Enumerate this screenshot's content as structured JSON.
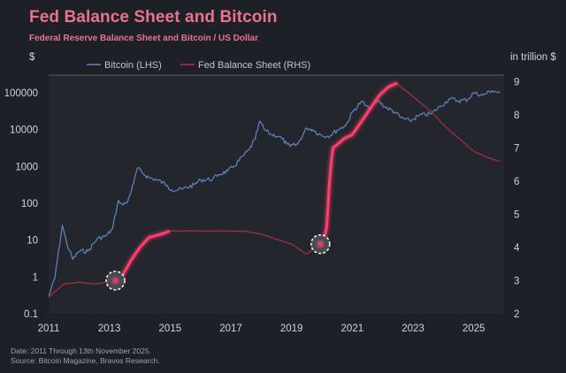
{
  "title": "Fed Balance Sheet and Bitcoin",
  "subtitle": "Federal Reserve Balance Sheet and Bitcoin / US Dollar",
  "left_axis_unit": "$",
  "right_axis_unit": "in trillion $",
  "footer": {
    "date_line": "Date: 2011 Through 13th November 2025.",
    "source_line": "Source: Bitcoin Magazine, Bravos Research."
  },
  "colors": {
    "background": "#1e2027",
    "plot_background": "#24262d",
    "bitcoin": "#5b7fb5",
    "fed": "#a83046",
    "fed_highlight": "#ff3d6a",
    "title": "#e8728f"
  },
  "chart_data": {
    "type": "line",
    "title": "Fed Balance Sheet and Bitcoin",
    "legend": [
      "Bitcoin (LHS)",
      "Fed Balance Sheet (RHS)"
    ],
    "legend_position": "top-left",
    "grid": false,
    "x_axis": {
      "min": 2011,
      "max": 2026,
      "ticks": [
        2011,
        2013,
        2015,
        2017,
        2019,
        2021,
        2023,
        2025
      ],
      "tick_labels": [
        "2011",
        "2013",
        "2015",
        "2017",
        "2019",
        "2021",
        "2023",
        "2025"
      ]
    },
    "y_left": {
      "scale": "log",
      "min": 0.1,
      "max": 300000,
      "ticks": [
        0.1,
        1,
        10,
        100,
        1000,
        10000,
        100000
      ],
      "tick_labels": [
        "0.1",
        "1",
        "10",
        "100",
        "1000",
        "10000",
        "100000"
      ]
    },
    "y_right": {
      "scale": "linear",
      "min": 2,
      "max": 9.2,
      "ticks": [
        2,
        3,
        4,
        5,
        6,
        7,
        8,
        9
      ],
      "tick_labels": [
        "2",
        "3",
        "4",
        "5",
        "6",
        "7",
        "8",
        "9"
      ]
    },
    "series": [
      {
        "name": "Bitcoin (LHS)",
        "axis": "left",
        "x": [
          2011.0,
          2011.2,
          2011.45,
          2011.6,
          2011.8,
          2012.0,
          2012.3,
          2012.6,
          2012.9,
          2013.1,
          2013.3,
          2013.45,
          2013.6,
          2013.8,
          2013.92,
          2014.1,
          2014.3,
          2014.6,
          2014.9,
          2015.05,
          2015.4,
          2015.8,
          2016.0,
          2016.4,
          2016.6,
          2016.9,
          2017.1,
          2017.4,
          2017.6,
          2017.8,
          2017.96,
          2018.1,
          2018.3,
          2018.6,
          2018.85,
          2018.95,
          2019.2,
          2019.5,
          2019.7,
          2019.95,
          2020.2,
          2020.5,
          2020.8,
          2021.0,
          2021.3,
          2021.55,
          2021.85,
          2022.1,
          2022.4,
          2022.6,
          2022.9,
          2023.2,
          2023.6,
          2023.9,
          2024.2,
          2024.5,
          2024.8,
          2025.0,
          2025.3,
          2025.6,
          2025.87
        ],
        "values": [
          0.3,
          0.9,
          25,
          8,
          3,
          5,
          5,
          11,
          13,
          20,
          120,
          90,
          110,
          350,
          900,
          650,
          500,
          420,
          310,
          230,
          240,
          320,
          430,
          450,
          600,
          750,
          1000,
          1900,
          2800,
          5500,
          17000,
          10000,
          7500,
          6500,
          4000,
          3500,
          4000,
          11000,
          10000,
          7200,
          6500,
          9500,
          13500,
          29000,
          58000,
          36000,
          60000,
          40000,
          30000,
          21000,
          17000,
          24000,
          27000,
          42000,
          69000,
          60000,
          65000,
          100000,
          85000,
          115000,
          99000
        ]
      },
      {
        "name": "Fed Balance Sheet (RHS)",
        "axis": "right",
        "x": [
          2011.0,
          2011.5,
          2012.0,
          2012.5,
          2013.0,
          2013.4,
          2013.7,
          2014.0,
          2014.3,
          2014.7,
          2015.0,
          2015.5,
          2016.0,
          2016.5,
          2017.0,
          2017.5,
          2018.0,
          2018.5,
          2019.0,
          2019.5,
          2019.9,
          2020.0,
          2020.15,
          2020.25,
          2020.35,
          2020.5,
          2020.75,
          2021.0,
          2021.3,
          2021.6,
          2021.9,
          2022.2,
          2022.45,
          2022.8,
          2023.2,
          2023.6,
          2024.0,
          2024.5,
          2025.0,
          2025.5,
          2025.87
        ],
        "values": [
          2.5,
          2.9,
          2.95,
          2.9,
          2.95,
          3.1,
          3.6,
          4.0,
          4.3,
          4.4,
          4.5,
          4.5,
          4.5,
          4.5,
          4.5,
          4.48,
          4.4,
          4.25,
          4.1,
          3.8,
          4.1,
          4.2,
          4.5,
          6.0,
          7.0,
          7.1,
          7.3,
          7.4,
          7.8,
          8.2,
          8.6,
          8.85,
          8.95,
          8.7,
          8.4,
          8.1,
          7.7,
          7.3,
          6.9,
          6.7,
          6.6
        ]
      }
    ],
    "highlighted_segments": [
      {
        "series": "Fed Balance Sheet (RHS)",
        "from": 2013.2,
        "to": 2014.95
      },
      {
        "series": "Fed Balance Sheet (RHS)",
        "from": 2019.95,
        "to": 2022.45
      }
    ],
    "markers": [
      {
        "series": "Fed Balance Sheet (RHS)",
        "x": 2013.2,
        "value": 3.0,
        "shape": "dashed-circle"
      },
      {
        "series": "Fed Balance Sheet (RHS)",
        "x": 2019.95,
        "value": 4.1,
        "shape": "dashed-circle"
      }
    ]
  }
}
